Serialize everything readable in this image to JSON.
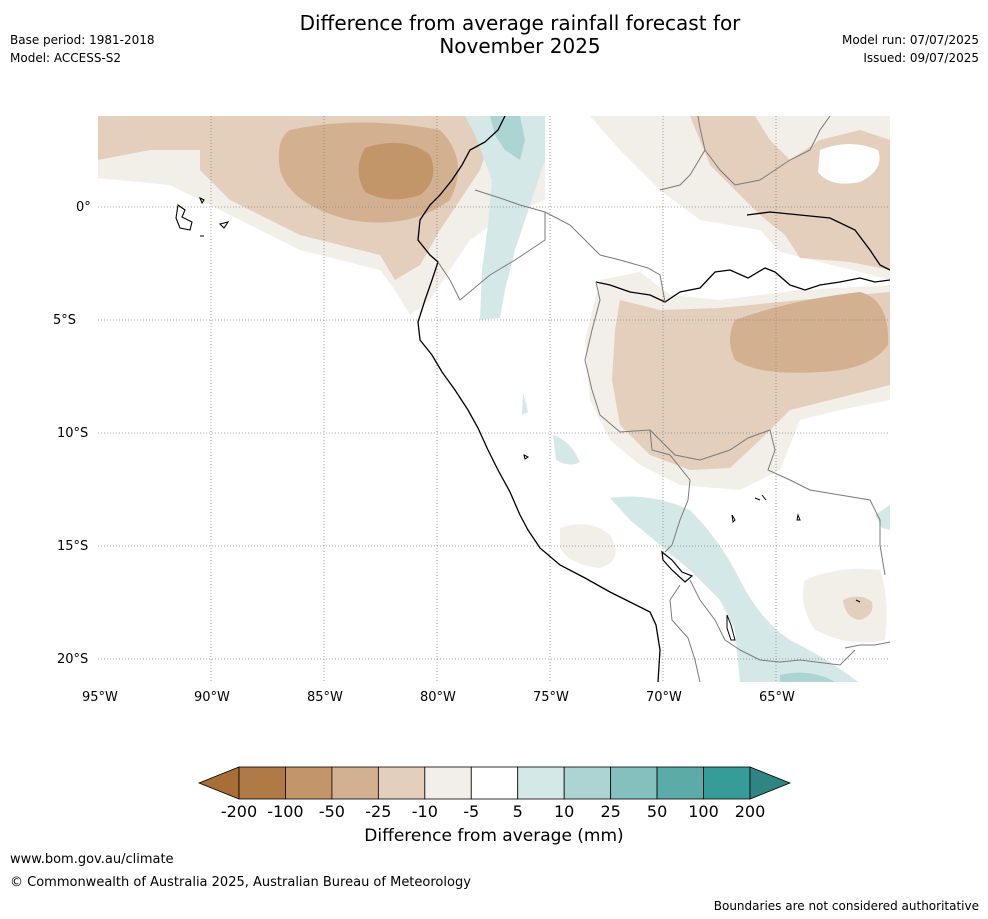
{
  "header": {
    "title_line1": "Difference from average rainfall forecast for",
    "title_line2": "November 2025",
    "base_period": "Base period: 1981-2018",
    "model": "Model: ACCESS-S2",
    "model_run": "Model run: 07/07/2025",
    "issued": "Issued: 09/07/2025"
  },
  "map": {
    "lat_labels": [
      "0°",
      "5°S",
      "10°S",
      "15°S",
      "20°S"
    ],
    "lon_labels": [
      "95°W",
      "90°W",
      "85°W",
      "80°W",
      "75°W",
      "70°W",
      "65°W"
    ],
    "lat_range": [
      -21,
      4
    ],
    "lon_range": [
      -95,
      -60
    ]
  },
  "colorbar": {
    "title": "Difference from average (mm)",
    "tick_labels": [
      "-200",
      "-100",
      "-50",
      "-25",
      "-10",
      "-5",
      "5",
      "10",
      "25",
      "50",
      "100",
      "200"
    ],
    "colors": [
      "#A76E35",
      "#B07A46",
      "#C29669",
      "#D2B090",
      "#E3CFBC",
      "#F2EEE8",
      "#FFFFFF",
      "#D4E8E7",
      "#ABD4D3",
      "#84C0BD",
      "#5BACA9",
      "#359C98",
      "#2E8582"
    ]
  },
  "footer": {
    "url": "www.bom.gov.au/climate",
    "copyright": "© Commonwealth of Australia 2025, Australian Bureau of Meteorology",
    "disclaimer": "Boundaries are not considered authoritative"
  }
}
